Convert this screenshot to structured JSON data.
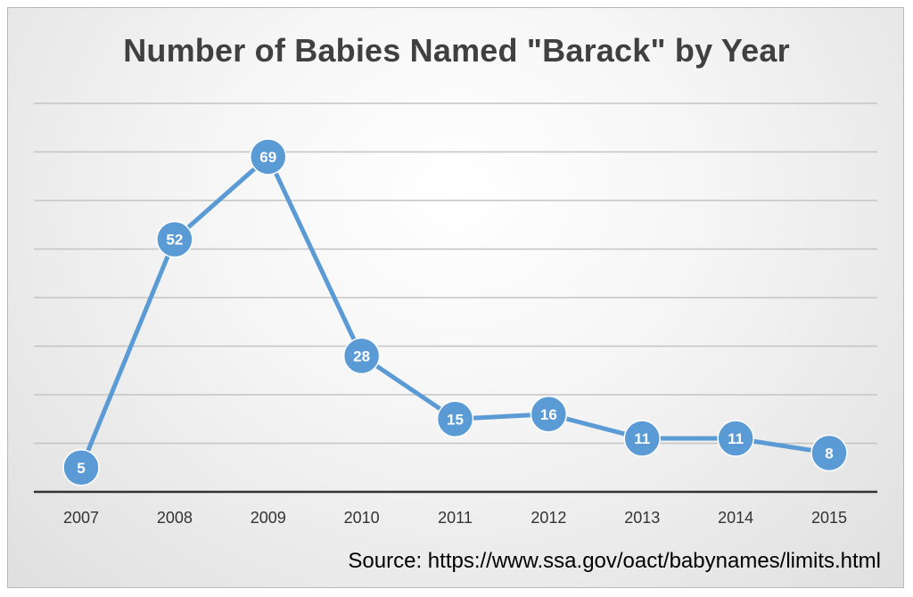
{
  "chart_data": {
    "type": "line",
    "title": "Number of Babies Named \"Barack\" by Year",
    "categories": [
      "2007",
      "2008",
      "2009",
      "2010",
      "2011",
      "2012",
      "2013",
      "2014",
      "2015"
    ],
    "series": [
      {
        "values": [
          5,
          52,
          69,
          28,
          15,
          16,
          11,
          11,
          8
        ]
      }
    ],
    "data_labels": [
      "5",
      "52",
      "69",
      "28",
      "15",
      "16",
      "11",
      "11",
      "8"
    ],
    "ylim": [
      0,
      80
    ],
    "y_gridline_step": 10,
    "grid": true,
    "legend": "none",
    "xlabel": "",
    "ylabel": "",
    "line_color": "#5b9bd5",
    "source": "Source: https://www.ssa.gov/oact/babynames/limits.html"
  }
}
